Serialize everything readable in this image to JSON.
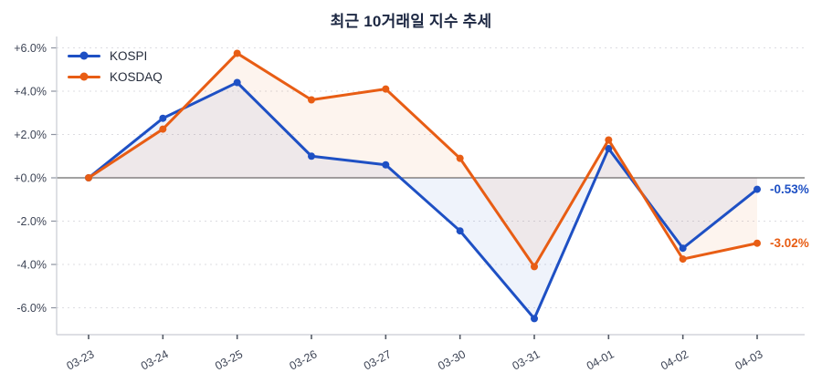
{
  "chart_data": {
    "type": "line",
    "title": "최근 10거래일 지수 추세",
    "categories": [
      "03-23",
      "03-24",
      "03-25",
      "03-26",
      "03-27",
      "03-30",
      "03-31",
      "04-01",
      "04-02",
      "04-03"
    ],
    "series": [
      {
        "name": "KOSPI",
        "color": "#1E50C4",
        "values": [
          0.0,
          2.75,
          4.4,
          1.0,
          0.6,
          -2.45,
          -6.5,
          1.35,
          -3.25,
          -0.53
        ],
        "end_label": "-0.53%"
      },
      {
        "name": "KOSDAQ",
        "color": "#E85D14",
        "values": [
          0.0,
          2.25,
          5.75,
          3.6,
          4.1,
          0.9,
          -4.1,
          1.75,
          -3.75,
          -3.02
        ],
        "end_label": "-3.02%"
      }
    ],
    "y_axis": {
      "ticks": [
        {
          "value": 6,
          "label": "+6.0%"
        },
        {
          "value": 4,
          "label": "+4.0%"
        },
        {
          "value": 2,
          "label": "+2.0%"
        },
        {
          "value": 0,
          "label": "+0.0%"
        },
        {
          "value": -2,
          "label": "-2.0%"
        },
        {
          "value": -4,
          "label": "-4.0%"
        },
        {
          "value": -6,
          "label": "-6.0%"
        }
      ]
    },
    "ylim": [
      -7.2,
      6.5
    ],
    "grid": true,
    "fill_to_zero": true,
    "legend_position": "top-left",
    "colors": {
      "zero_line": "#848484",
      "grid": "#DDDDE2",
      "axis": "#C9CCD3",
      "tick_mark": "#555B66",
      "tick_label": "#3D4455",
      "title": "#1C2742"
    }
  }
}
